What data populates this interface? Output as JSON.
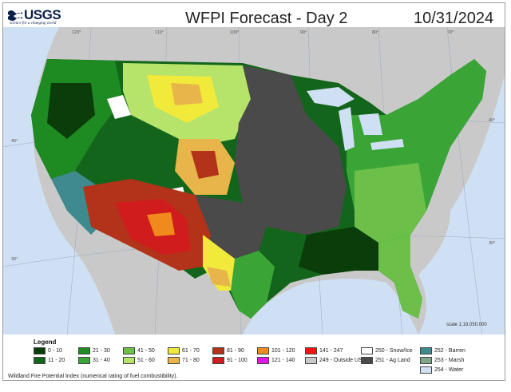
{
  "header": {
    "logo_text": "USGS",
    "logo_tagline": "science for a changing world",
    "title": "WFPI Forecast - Day 2",
    "date": "10/31/2024"
  },
  "map": {
    "longitude_labels": [
      "120°",
      "110°",
      "100°",
      "90°",
      "80°",
      "70°"
    ],
    "latitude_labels_left": [
      "40°",
      "30°"
    ],
    "latitude_labels_right": [
      "40°",
      "30°"
    ],
    "scale_text": "scale 1:18,050,000"
  },
  "legend": {
    "title": "Legend",
    "items": [
      {
        "label": "0 - 10",
        "color": "#0a3d0a"
      },
      {
        "label": "11 - 20",
        "color": "#12651a"
      },
      {
        "label": "21 - 30",
        "color": "#1e8a22"
      },
      {
        "label": "31 - 40",
        "color": "#3aa536"
      },
      {
        "label": "41 - 50",
        "color": "#6cc04a"
      },
      {
        "label": "51 - 60",
        "color": "#b6e36a"
      },
      {
        "label": "61 - 70",
        "color": "#f2ea3a"
      },
      {
        "label": "71 - 80",
        "color": "#e7b54a"
      },
      {
        "label": "81 - 90",
        "color": "#b2331a"
      },
      {
        "label": "91 - 100",
        "color": "#d01c1c"
      },
      {
        "label": "101 - 120",
        "color": "#f08a1c"
      },
      {
        "label": "121 - 140",
        "color": "#e614e6"
      },
      {
        "label": "141 - 247",
        "color": "#ff1010"
      },
      {
        "label": "249 - Outside US",
        "color": "#c9c9c9"
      },
      {
        "label": "250 - Snow/Ice",
        "color": "#ffffff"
      },
      {
        "label": "251 - Ag Land",
        "color": "#4a4a4a"
      },
      {
        "label": "252 - Barren",
        "color": "#3f8a8e"
      },
      {
        "label": "253 - Marsh",
        "color": "#7fa58a"
      },
      {
        "label": "254 - Water",
        "color": "#cfe0f5"
      }
    ],
    "footnote": "Wildland Fire Potential Index (numerical rating of fuel combustibility)."
  }
}
